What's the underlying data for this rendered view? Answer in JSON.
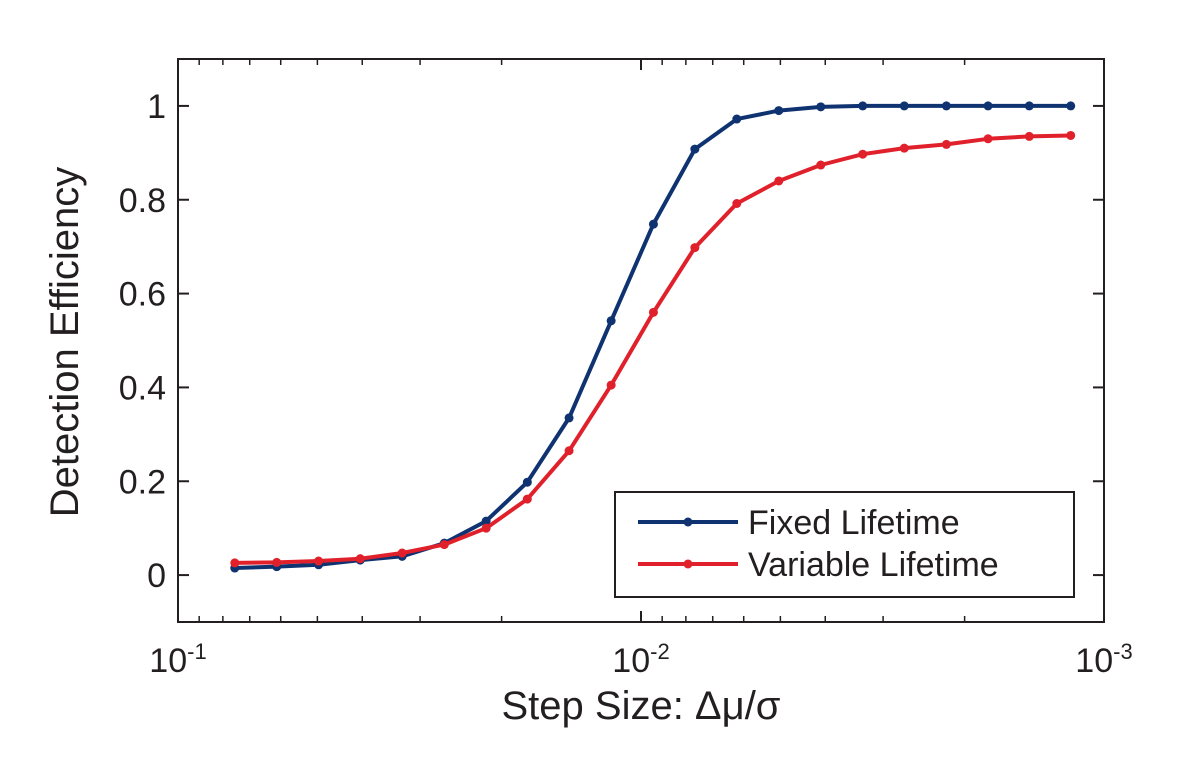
{
  "chart_data": {
    "type": "line",
    "title": "",
    "xlabel": "Step Size: Δμ/σ",
    "ylabel": "Detection Efficiency",
    "xscale": "log",
    "x_reversed": true,
    "xlim": [
      0.1,
      0.001
    ],
    "ylim": [
      -0.1,
      1.1
    ],
    "yticks": [
      0,
      0.2,
      0.4,
      0.6,
      0.8,
      1
    ],
    "ytick_labels": [
      "0",
      "0.2",
      "0.4",
      "0.6",
      "0.8",
      "1"
    ],
    "xticks": [
      {
        "value": 0.1,
        "base": "10",
        "exp": "-1"
      },
      {
        "value": 0.01,
        "base": "10",
        "exp": "-2"
      },
      {
        "value": 0.001,
        "base": "10",
        "exp": "-3"
      }
    ],
    "legend_position": "bottom-right",
    "x": [
      0.0754,
      0.0612,
      0.0497,
      0.0404,
      0.0328,
      0.0266,
      0.0216,
      0.0176,
      0.0143,
      0.0116,
      0.0094,
      0.00765,
      0.00621,
      0.00504,
      0.00409,
      0.00332,
      0.0027,
      0.00219,
      0.00178,
      0.00145,
      0.00118
    ],
    "series": [
      {
        "name": "Fixed Lifetime",
        "color": "#0f3370",
        "values": [
          0.015,
          0.018,
          0.022,
          0.032,
          0.04,
          0.068,
          0.115,
          0.198,
          0.335,
          0.542,
          0.748,
          0.908,
          0.972,
          0.99,
          0.998,
          1.0,
          1.0,
          1.0,
          1.0,
          1.0,
          1.0
        ]
      },
      {
        "name": "Variable Lifetime",
        "color": "#e0212b",
        "values": [
          0.026,
          0.027,
          0.03,
          0.035,
          0.047,
          0.065,
          0.1,
          0.162,
          0.265,
          0.405,
          0.56,
          0.698,
          0.792,
          0.84,
          0.874,
          0.897,
          0.91,
          0.918,
          0.93,
          0.935,
          0.937
        ]
      }
    ]
  }
}
